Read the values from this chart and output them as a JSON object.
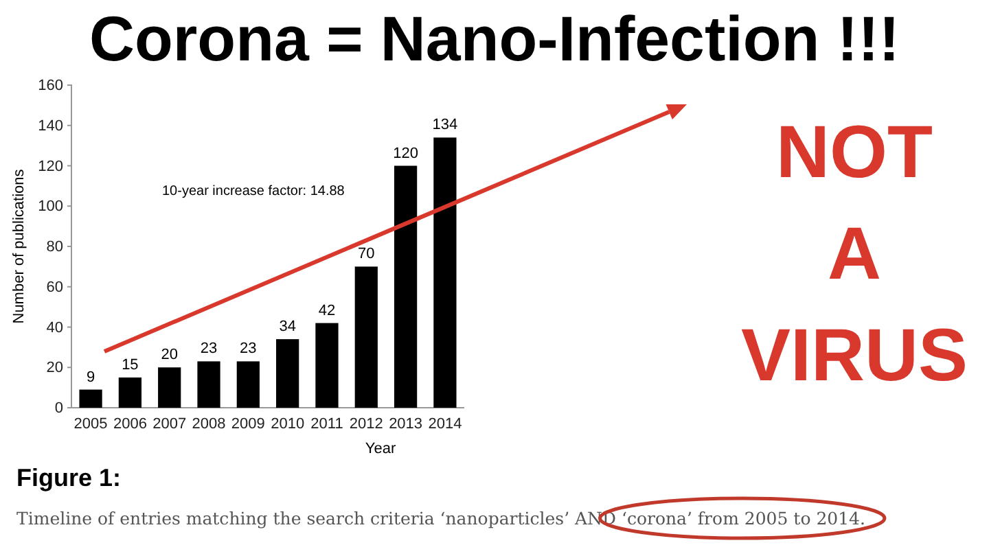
{
  "chart_data": {
    "type": "bar",
    "title": "Corona = Nano-Infection !!!",
    "xlabel": "Year",
    "ylabel": "Number of publications",
    "categories": [
      "2005",
      "2006",
      "2007",
      "2008",
      "2009",
      "2010",
      "2011",
      "2012",
      "2013",
      "2014"
    ],
    "values": [
      9,
      15,
      20,
      23,
      23,
      34,
      42,
      70,
      120,
      134
    ],
    "color": "#000000",
    "data_labels": true,
    "ylim": [
      0,
      160
    ],
    "yticks": [
      0,
      20,
      40,
      60,
      80,
      100,
      120,
      140,
      160
    ],
    "grid": false,
    "annotations": [
      "10-year increase factor: 14.88",
      "NOT",
      "A",
      "VIRUS",
      "Figure 1:",
      "Timeline of entries matching the search criteria ‘nanoparticles’ AND ‘corona’ from 2005 to 2014."
    ]
  }
}
